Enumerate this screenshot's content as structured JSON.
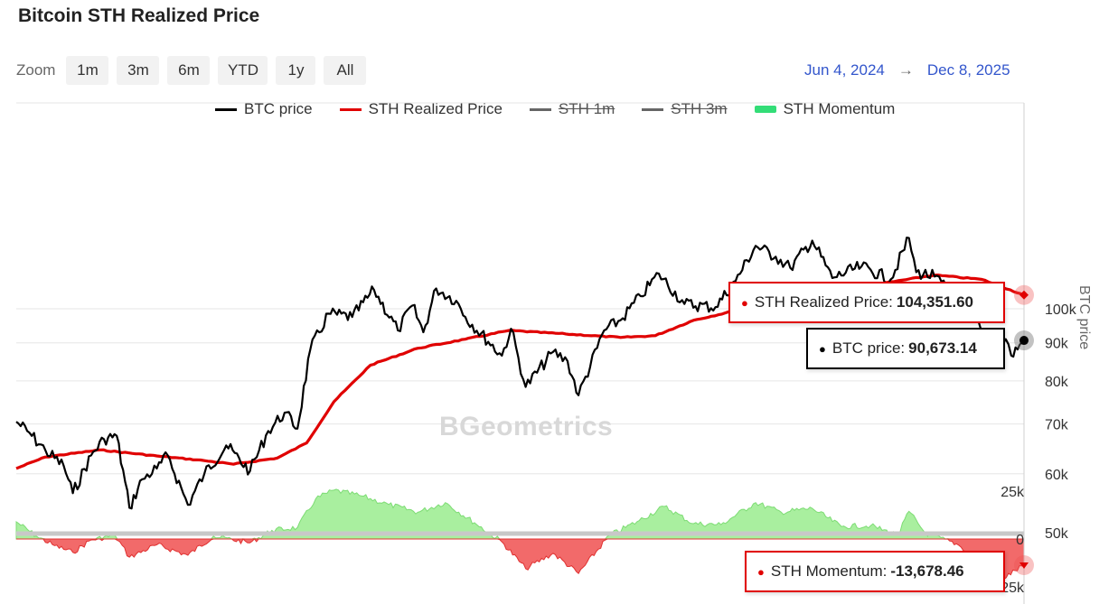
{
  "title": "Bitcoin STH Realized Price",
  "zoom": {
    "label": "Zoom",
    "buttons": [
      "1m",
      "3m",
      "6m",
      "YTD",
      "1y",
      "All"
    ]
  },
  "date_range": {
    "from": "Jun 4, 2024",
    "arrow": "→",
    "to": "Dec 8, 2025"
  },
  "legend": [
    {
      "label": "BTC price",
      "color": "#000000",
      "kind": "line",
      "visible": true
    },
    {
      "label": "STH Realized Price",
      "color": "#e00000",
      "kind": "line",
      "visible": true
    },
    {
      "label": "STH 1m",
      "color": "#666666",
      "kind": "line",
      "visible": false
    },
    {
      "label": "STH 3m",
      "color": "#666666",
      "kind": "line",
      "visible": false
    },
    {
      "label": "STH Momentum",
      "color": "#33dd77",
      "kind": "area",
      "visible": true
    }
  ],
  "tooltips": {
    "sth_realized": {
      "label": "STH Realized Price:",
      "value": "104,351.60",
      "color": "#e00000"
    },
    "btc_price": {
      "label": "BTC price:",
      "value": "90,673.14",
      "color": "#000000"
    },
    "momentum": {
      "label": "STH Momentum:",
      "value": "-13,678.46",
      "color": "#e00000"
    }
  },
  "watermark": "BGeometrics",
  "chart_data": {
    "type": "line",
    "title": "Bitcoin STH Realized Price",
    "x_range": [
      "2024-06-04",
      "2025-12-08"
    ],
    "yaxis_price": {
      "title": "BTC price",
      "scale": "log",
      "ticks": [
        "50k",
        "60k",
        "70k",
        "80k",
        "90k",
        "100k"
      ],
      "tick_values": [
        50000,
        60000,
        70000,
        80000,
        90000,
        100000
      ]
    },
    "yaxis_momentum": {
      "ticks": [
        "25k",
        "0",
        "-25k"
      ],
      "tick_values": [
        25000,
        0,
        -25000
      ]
    },
    "series": [
      {
        "name": "BTC price",
        "color": "#000000",
        "values": [
          [
            "2024-06-04",
            70500
          ],
          [
            "2024-06-10",
            68500
          ],
          [
            "2024-06-20",
            64500
          ],
          [
            "2024-06-30",
            61500
          ],
          [
            "2024-07-05",
            56500
          ],
          [
            "2024-07-15",
            63500
          ],
          [
            "2024-07-22",
            66800
          ],
          [
            "2024-07-29",
            67500
          ],
          [
            "2024-08-05",
            54000
          ],
          [
            "2024-08-12",
            59000
          ],
          [
            "2024-08-20",
            61000
          ],
          [
            "2024-08-26",
            63500
          ],
          [
            "2024-09-06",
            54500
          ],
          [
            "2024-09-15",
            60000
          ],
          [
            "2024-09-27",
            65500
          ],
          [
            "2024-10-10",
            60500
          ],
          [
            "2024-10-20",
            68500
          ],
          [
            "2024-10-29",
            72500
          ],
          [
            "2024-11-05",
            69000
          ],
          [
            "2024-11-12",
            88000
          ],
          [
            "2024-11-22",
            98500
          ],
          [
            "2024-12-05",
            97500
          ],
          [
            "2024-12-17",
            106000
          ],
          [
            "2024-12-30",
            93500
          ],
          [
            "2025-01-07",
            101000
          ],
          [
            "2025-01-13",
            93000
          ],
          [
            "2025-01-20",
            106500
          ],
          [
            "2025-01-31",
            102500
          ],
          [
            "2025-02-05",
            97500
          ],
          [
            "2025-02-25",
            86500
          ],
          [
            "2025-03-02",
            94000
          ],
          [
            "2025-03-10",
            78500
          ],
          [
            "2025-03-25",
            87500
          ],
          [
            "2025-04-02",
            85000
          ],
          [
            "2025-04-08",
            76500
          ],
          [
            "2025-04-22",
            93500
          ],
          [
            "2025-05-01",
            96500
          ],
          [
            "2025-05-12",
            104000
          ],
          [
            "2025-05-22",
            111500
          ],
          [
            "2025-06-05",
            101500
          ],
          [
            "2025-06-22",
            100500
          ],
          [
            "2025-07-03",
            109000
          ],
          [
            "2025-07-14",
            121500
          ],
          [
            "2025-07-25",
            117500
          ],
          [
            "2025-08-02",
            113500
          ],
          [
            "2025-08-14",
            123500
          ],
          [
            "2025-08-25",
            110000
          ],
          [
            "2025-09-10",
            114000
          ],
          [
            "2025-09-26",
            109500
          ],
          [
            "2025-10-06",
            124500
          ],
          [
            "2025-10-10",
            112000
          ],
          [
            "2025-10-20",
            110500
          ],
          [
            "2025-11-04",
            101000
          ],
          [
            "2025-11-14",
            94500
          ],
          [
            "2025-11-21",
            84500
          ],
          [
            "2025-11-28",
            91000
          ],
          [
            "2025-12-01",
            86500
          ],
          [
            "2025-12-08",
            90673.14
          ]
        ]
      },
      {
        "name": "STH Realized Price",
        "color": "#e00000",
        "values": [
          [
            "2024-06-04",
            61000
          ],
          [
            "2024-06-20",
            63200
          ],
          [
            "2024-07-20",
            64600
          ],
          [
            "2024-08-20",
            63400
          ],
          [
            "2024-09-15",
            62500
          ],
          [
            "2024-10-01",
            61800
          ],
          [
            "2024-10-25",
            63000
          ],
          [
            "2024-11-10",
            66000
          ],
          [
            "2024-11-25",
            75000
          ],
          [
            "2024-12-15",
            84000
          ],
          [
            "2025-01-10",
            88500
          ],
          [
            "2025-02-05",
            91000
          ],
          [
            "2025-03-01",
            93500
          ],
          [
            "2025-04-01",
            92500
          ],
          [
            "2025-05-01",
            91500
          ],
          [
            "2025-05-20",
            92000
          ],
          [
            "2025-06-10",
            96500
          ],
          [
            "2025-07-15",
            101000
          ],
          [
            "2025-08-20",
            104500
          ],
          [
            "2025-09-20",
            108000
          ],
          [
            "2025-10-20",
            111000
          ],
          [
            "2025-11-15",
            109500
          ],
          [
            "2025-12-08",
            104351.6
          ]
        ]
      },
      {
        "name": "STH Momentum",
        "color": "#33dd77",
        "negative_color": "#ee2222",
        "values": [
          [
            "2024-06-04",
            9000
          ],
          [
            "2024-06-15",
            1500
          ],
          [
            "2024-06-25",
            -3500
          ],
          [
            "2024-07-05",
            -7000
          ],
          [
            "2024-07-15",
            -500
          ],
          [
            "2024-07-28",
            2000
          ],
          [
            "2024-08-05",
            -9500
          ],
          [
            "2024-08-20",
            -3000
          ],
          [
            "2024-09-06",
            -8500
          ],
          [
            "2024-09-20",
            1500
          ],
          [
            "2024-10-10",
            -2000
          ],
          [
            "2024-10-22",
            4500
          ],
          [
            "2024-11-05",
            6000
          ],
          [
            "2024-11-15",
            21000
          ],
          [
            "2024-11-25",
            25500
          ],
          [
            "2024-12-10",
            22500
          ],
          [
            "2024-12-25",
            18000
          ],
          [
            "2025-01-10",
            14000
          ],
          [
            "2025-01-25",
            19000
          ],
          [
            "2025-02-10",
            8500
          ],
          [
            "2025-02-25",
            -1500
          ],
          [
            "2025-03-10",
            -15500
          ],
          [
            "2025-03-25",
            -7500
          ],
          [
            "2025-04-08",
            -18000
          ],
          [
            "2025-04-25",
            2000
          ],
          [
            "2025-05-10",
            9000
          ],
          [
            "2025-05-25",
            17000
          ],
          [
            "2025-06-10",
            8000
          ],
          [
            "2025-06-25",
            7500
          ],
          [
            "2025-07-14",
            19000
          ],
          [
            "2025-07-28",
            14000
          ],
          [
            "2025-08-14",
            16000
          ],
          [
            "2025-08-30",
            6500
          ],
          [
            "2025-09-15",
            7000
          ],
          [
            "2025-09-30",
            2000
          ],
          [
            "2025-10-06",
            14500
          ],
          [
            "2025-10-15",
            3000
          ],
          [
            "2025-11-01",
            -2500
          ],
          [
            "2025-11-15",
            -12000
          ],
          [
            "2025-11-21",
            -24000
          ],
          [
            "2025-12-08",
            -13678.46
          ]
        ]
      }
    ]
  }
}
